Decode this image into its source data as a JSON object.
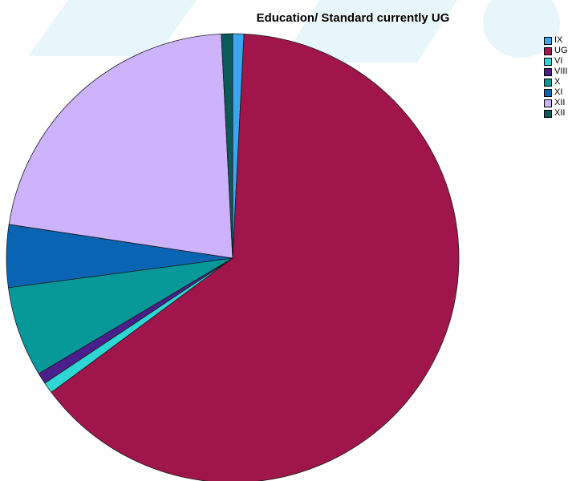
{
  "chart_data": {
    "type": "pie",
    "title": "Education/ Standard currently UG",
    "legend_position": "top-right",
    "slices": [
      {
        "label": "IX",
        "value": 0.8,
        "color": "#3aa6f0"
      },
      {
        "label": "UG",
        "value": 64.0,
        "color": "#a0164c"
      },
      {
        "label": "VI",
        "value": 0.8,
        "color": "#2ed6d6"
      },
      {
        "label": "VIII",
        "value": 0.8,
        "color": "#4a1e8c"
      },
      {
        "label": "X",
        "value": 6.5,
        "color": "#07999a"
      },
      {
        "label": "XI",
        "value": 4.5,
        "color": "#0a64b4"
      },
      {
        "label": "XII",
        "value": 21.8,
        "color": "#cdb2fc"
      },
      {
        "label": "XII",
        "value": 0.8,
        "color": "#0a5a5a"
      }
    ]
  }
}
